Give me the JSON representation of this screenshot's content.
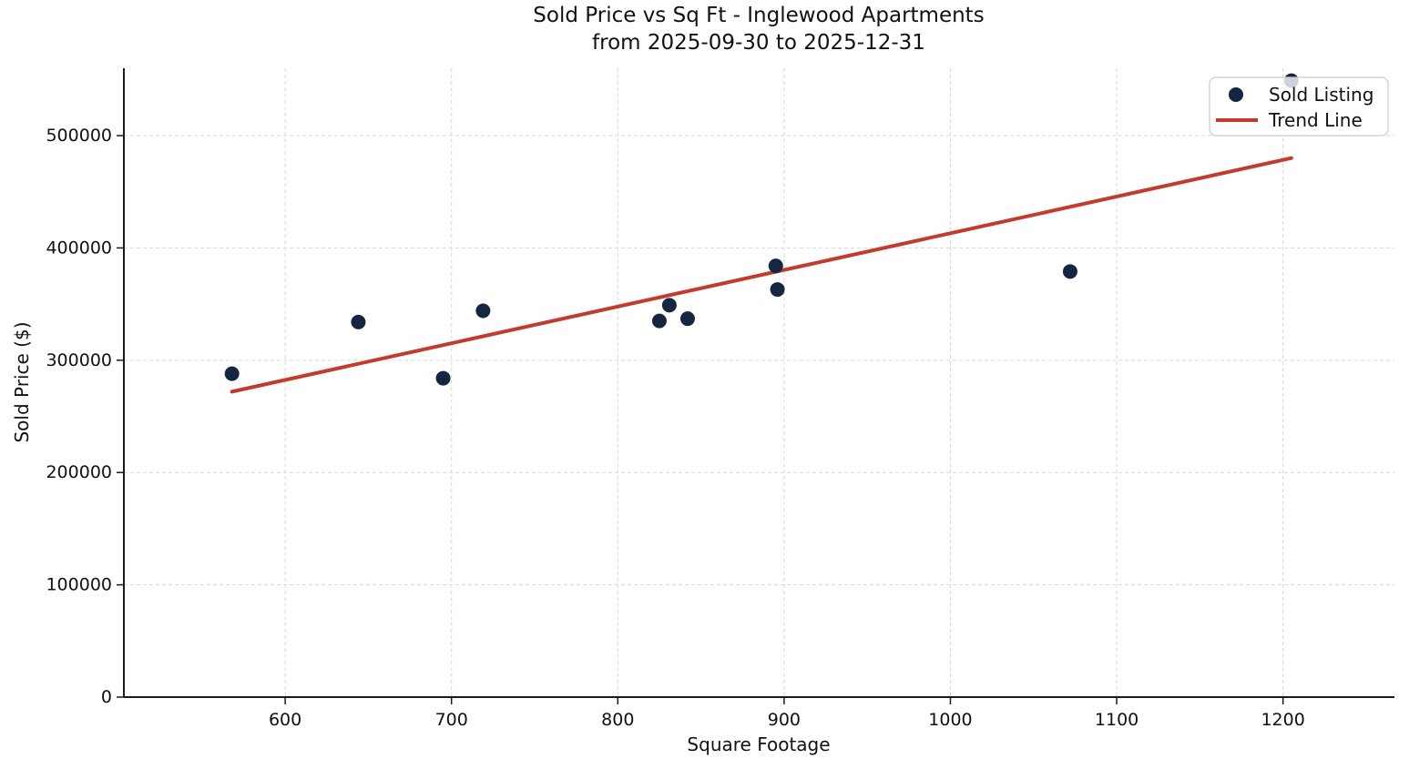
{
  "title": {
    "line1": "Sold Price vs Sq Ft - Inglewood Apartments",
    "line2": "from 2025-09-30 to 2025-12-31"
  },
  "axes": {
    "x_label": "Square Footage",
    "y_label": "Sold Price ($)",
    "x_ticks": [
      600,
      700,
      800,
      900,
      1000,
      1100,
      1200
    ],
    "y_ticks": [
      0,
      100000,
      200000,
      300000,
      400000,
      500000
    ],
    "xlim": [
      503,
      1267
    ],
    "ylim": [
      0,
      560000
    ]
  },
  "legend": {
    "items": [
      {
        "label": "Sold Listing",
        "symbol": "marker"
      },
      {
        "label": "Trend Line",
        "symbol": "line"
      }
    ]
  },
  "colors": {
    "point": "#132740",
    "trend": "#c23b2c",
    "grid": "#d8d8d8",
    "axis": "#1a1a1a",
    "legend_border": "#cccccc",
    "legend_fill_alpha": "0.8"
  },
  "chart_data": {
    "type": "scatter",
    "title": "Sold Price vs Sq Ft - Inglewood Apartments\nfrom 2025-09-30 to 2025-12-31",
    "xlabel": "Square Footage",
    "ylabel": "Sold Price ($)",
    "xlim": [
      503,
      1267
    ],
    "ylim": [
      0,
      560000
    ],
    "grid": true,
    "grid_style": "dashed",
    "legend_position": "upper right",
    "series": [
      {
        "name": "Sold Listing",
        "type": "scatter",
        "marker_radius_px": 8,
        "points": [
          [
            568,
            288000
          ],
          [
            644,
            334000
          ],
          [
            695,
            284000
          ],
          [
            719,
            344000
          ],
          [
            825,
            335000
          ],
          [
            831,
            349000
          ],
          [
            842,
            337000
          ],
          [
            895,
            384000
          ],
          [
            896,
            363000
          ],
          [
            1072,
            379000
          ],
          [
            1205,
            549000
          ]
        ],
        "note": "point at (1205, 549000) sits behind the legend box"
      },
      {
        "name": "Trend Line",
        "type": "line",
        "stroke_width_px": 4,
        "points": [
          [
            568,
            272000
          ],
          [
            1205,
            480000
          ]
        ]
      }
    ]
  }
}
